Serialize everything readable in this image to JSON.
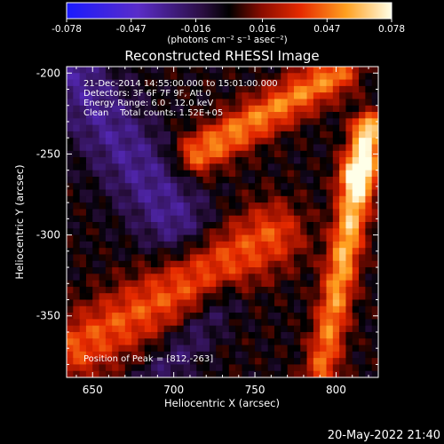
{
  "chart_data": {
    "type": "heatmap",
    "title": "Reconstructed RHESSI Image",
    "xlabel": "Heliocentric X (arcsec)",
    "ylabel": "Heliocentric Y (arcsec)",
    "xlim": [
      634,
      826
    ],
    "ylim": [
      -388,
      -196
    ],
    "x_ticks": [
      650,
      700,
      750,
      800
    ],
    "y_ticks": [
      -200,
      -250,
      -300,
      -350
    ],
    "colorbar": {
      "range": [
        -0.078,
        0.078
      ],
      "ticks": [
        -0.078,
        -0.047,
        -0.016,
        0.016,
        0.047,
        0.078
      ],
      "tick_labels": [
        "-0.078",
        "-0.047",
        "-0.016",
        "0.016",
        "0.047",
        "0.078"
      ],
      "units": "(photons cm⁻² s⁻¹ asec⁻²)",
      "colormap": "blue-purple-black-red-yellow-white"
    },
    "annotations": [
      "21-Dec-2014 14:55:00.000 to 15:01:00.000",
      "Detectors: 3F 6F 7F 9F, Att 0",
      "Energy Range: 6.0 - 12.0 keV",
      "Clean    Total counts: 1.52E+05"
    ],
    "peak_label": "Position of Peak = [812,-263]",
    "peak_position": [
      812,
      -263
    ],
    "structures": [
      {
        "name": "main bright ridge",
        "from": [
          790,
          -390
        ],
        "to": [
          820,
          -235
        ],
        "peak_value": 0.078
      },
      {
        "name": "upper bright arc",
        "from": [
          715,
          -250
        ],
        "to": [
          800,
          -200
        ],
        "peak_value": 0.05
      },
      {
        "name": "lower-left emission",
        "from": [
          640,
          -370
        ],
        "to": [
          760,
          -300
        ],
        "peak_value": 0.04
      },
      {
        "name": "negative region (upper-left)",
        "from": [
          634,
          -196
        ],
        "to": [
          700,
          -290
        ],
        "peak_value": -0.03
      },
      {
        "name": "negative band (bottom-left)",
        "from": [
          690,
          -390
        ],
        "to": [
          730,
          -340
        ],
        "peak_value": -0.02
      }
    ]
  },
  "footer": {
    "timestamp": "20-May-2022 21:40"
  }
}
